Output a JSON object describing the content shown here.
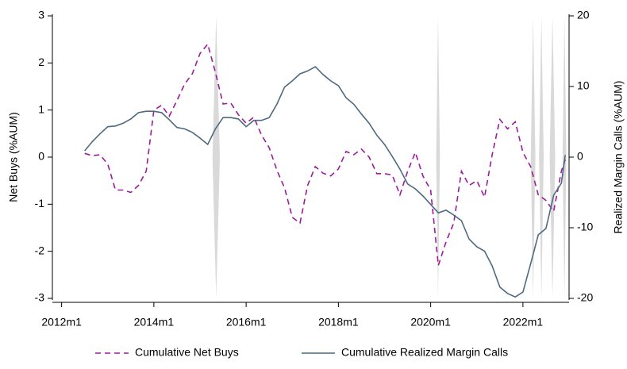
{
  "chart_data": {
    "type": "line",
    "x": [
      2012.5,
      2012.667,
      2012.833,
      2013,
      2013.167,
      2013.333,
      2013.5,
      2013.667,
      2013.833,
      2014,
      2014.167,
      2014.333,
      2014.5,
      2014.667,
      2014.833,
      2015,
      2015.167,
      2015.333,
      2015.5,
      2015.667,
      2015.833,
      2016,
      2016.167,
      2016.333,
      2016.5,
      2016.667,
      2016.833,
      2017,
      2017.167,
      2017.333,
      2017.5,
      2017.667,
      2017.833,
      2018,
      2018.167,
      2018.333,
      2018.5,
      2018.667,
      2018.833,
      2019,
      2019.167,
      2019.333,
      2019.5,
      2019.667,
      2019.833,
      2020,
      2020.167,
      2020.333,
      2020.5,
      2020.667,
      2020.833,
      2021,
      2021.167,
      2021.333,
      2021.5,
      2021.667,
      2021.833,
      2022,
      2022.167,
      2022.333,
      2022.5,
      2022.667,
      2022.833,
      2022.917
    ],
    "series": [
      {
        "name": "Cumulative Net Buys",
        "color": "#9b1c9b",
        "dash": true,
        "axis": "y",
        "values": [
          0.08,
          0.03,
          0.05,
          -0.15,
          -0.7,
          -0.7,
          -0.75,
          -0.6,
          -0.3,
          1.0,
          1.1,
          0.87,
          1.2,
          1.55,
          1.77,
          2.2,
          2.4,
          1.8,
          1.13,
          1.15,
          0.9,
          0.72,
          0.85,
          0.47,
          0.2,
          -0.28,
          -0.65,
          -1.28,
          -1.4,
          -0.6,
          -0.2,
          -0.34,
          -0.4,
          -0.25,
          0.12,
          0.05,
          0.17,
          0.0,
          -0.35,
          -0.35,
          -0.38,
          -0.8,
          -0.3,
          0.1,
          -0.4,
          -0.7,
          -2.3,
          -1.8,
          -1.4,
          -0.3,
          -0.6,
          -0.5,
          -0.85,
          0.05,
          0.8,
          0.6,
          0.75,
          0.1,
          -0.2,
          -0.8,
          -0.92,
          -1.15,
          -0.3,
          -0.05
        ]
      },
      {
        "name": "Cumulative Realized Margin Calls",
        "color": "#4d6a80",
        "dash": false,
        "axis": "y2",
        "values": [
          0.9,
          2.2,
          3.3,
          4.3,
          4.4,
          4.8,
          5.4,
          6.3,
          6.5,
          6.5,
          6.3,
          5.3,
          4.2,
          4.0,
          3.5,
          2.7,
          1.8,
          4.0,
          5.6,
          5.6,
          5.4,
          4.3,
          5.2,
          5.2,
          5.6,
          7.5,
          9.9,
          10.8,
          11.8,
          12.2,
          12.8,
          11.7,
          10.8,
          10.1,
          8.4,
          7.5,
          6.1,
          4.8,
          3.1,
          1.8,
          0.1,
          -1.7,
          -3.8,
          -4.5,
          -5.5,
          -6.7,
          -7.9,
          -7.5,
          -8.2,
          -9.0,
          -11.6,
          -12.7,
          -13.3,
          -15.4,
          -18.4,
          -19.3,
          -19.8,
          -19.1,
          -15.1,
          -11.0,
          -10.1,
          -5.4,
          -3.7,
          0.3
        ]
      }
    ],
    "shaded_periods": [
      [
        2015.27,
        2015.43
      ],
      [
        2020.12,
        2020.2
      ],
      [
        2022.17,
        2022.27
      ],
      [
        2022.35,
        2022.45
      ],
      [
        2022.58,
        2022.7
      ],
      [
        2022.86,
        2022.94
      ]
    ],
    "shade_color": "#d9d9d9",
    "xlim": [
      2011.8,
      2023.0
    ],
    "xticks": [
      {
        "value": 2012,
        "label": "2012m1"
      },
      {
        "value": 2014,
        "label": "2014m1"
      },
      {
        "value": 2016,
        "label": "2016m1"
      },
      {
        "value": 2018,
        "label": "2018m1"
      },
      {
        "value": 2020,
        "label": "2020m1"
      },
      {
        "value": 2022,
        "label": "2022m1"
      }
    ],
    "ylim": [
      -3,
      3
    ],
    "yticks": [
      -3,
      -2,
      -1,
      0,
      1,
      2,
      3
    ],
    "y2lim": [
      -20,
      20
    ],
    "y2ticks": [
      -20,
      -10,
      0,
      10,
      20
    ],
    "ylabel": "Net Buys (%AUM)",
    "y2label": "Realized Margin Calls (%AUM)",
    "grid": false,
    "legend": "bottom"
  }
}
